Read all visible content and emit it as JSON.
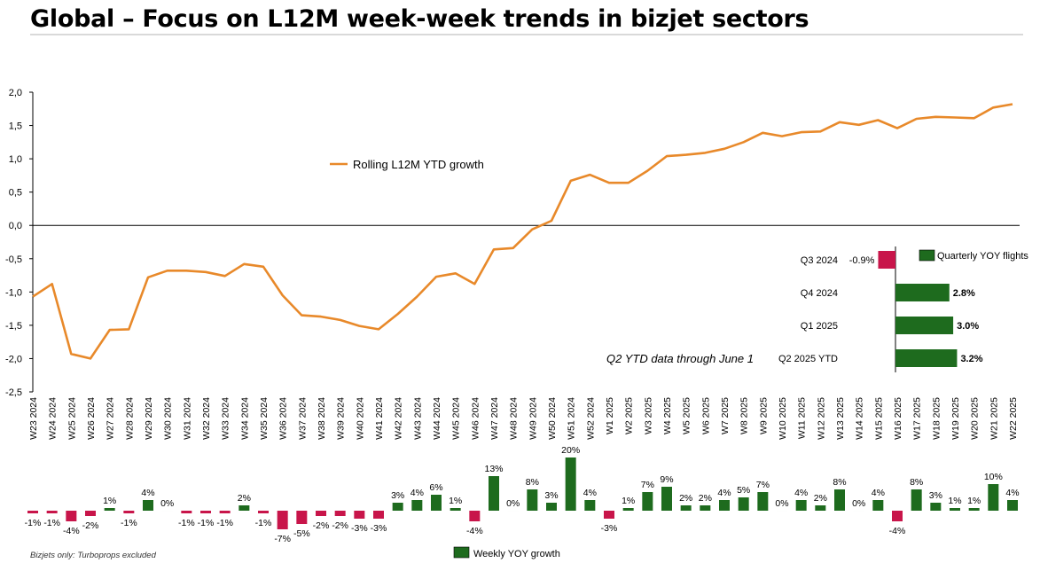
{
  "title": "Global – Focus on L12M week-week trends in bizjet sectors",
  "footnote": "Bizjets only: Turboprops excluded",
  "q2_note": "Q2 YTD data through June 1",
  "colors": {
    "line": "#e8892a",
    "positive": "#1e6b1e",
    "negative": "#c8154a"
  },
  "chart_data": [
    {
      "type": "line",
      "name": "rolling-ytd",
      "legend_label": "Rolling L12M YTD growth",
      "ylim": [
        -2.5,
        2.0
      ],
      "ytick_labels": [
        "2,0",
        "1,5",
        "1,0",
        "0,5",
        "0,0",
        "-0,5",
        "-1,0",
        "-1,5",
        "-2,0",
        "-2,5"
      ],
      "categories": [
        "W23 2024",
        "W24 2024",
        "W25 2024",
        "W26 2024",
        "W27 2024",
        "W28 2024",
        "W29 2024",
        "W30 2024",
        "W31 2024",
        "W32 2024",
        "W33 2024",
        "W34 2024",
        "W35 2024",
        "W36 2024",
        "W37 2024",
        "W38 2024",
        "W39 2024",
        "W40 2024",
        "W41 2024",
        "W42 2024",
        "W43 2024",
        "W44 2024",
        "W45 2024",
        "W46 2024",
        "W47 2024",
        "W48 2024",
        "W49 2024",
        "W50 2024",
        "W51 2024",
        "W52 2024",
        "W1 2025",
        "W2 2025",
        "W3 2025",
        "W4 2025",
        "W5 2025",
        "W6 2025",
        "W7 2025",
        "W8 2025",
        "W9 2025",
        "W10 2025",
        "W11 2025",
        "W12 2025",
        "W13 2025",
        "W14 2025",
        "W15 2025",
        "W16 2025",
        "W17 2025",
        "W18 2025",
        "W19 2025",
        "W20 2025",
        "W21 2025",
        "W22 2025"
      ],
      "values": [
        -1.07,
        -0.88,
        -1.93,
        -2.0,
        -1.57,
        -1.56,
        -0.78,
        -0.68,
        -0.68,
        -0.7,
        -0.76,
        -0.58,
        -0.62,
        -1.05,
        -1.35,
        -1.37,
        -1.42,
        -1.51,
        -1.56,
        -1.33,
        -1.07,
        -0.77,
        -0.72,
        -0.88,
        -0.36,
        -0.34,
        -0.06,
        0.07,
        0.67,
        0.76,
        0.64,
        0.64,
        0.82,
        1.04,
        1.06,
        1.09,
        1.15,
        1.25,
        1.39,
        1.34,
        1.4,
        1.41,
        1.55,
        1.51,
        1.58,
        1.46,
        1.6,
        1.63,
        1.62,
        1.61,
        1.77,
        1.82
      ]
    },
    {
      "type": "bar",
      "name": "weekly-yoy",
      "legend_label": "Weekly YOY growth",
      "values": [
        -1,
        -1,
        -4,
        -2,
        1,
        -1,
        4,
        0,
        -1,
        -1,
        -1,
        2,
        -1,
        -7,
        -5,
        -2,
        -2,
        -3,
        -3,
        3,
        4,
        6,
        1,
        -4,
        13,
        0,
        8,
        3,
        20,
        4,
        -3,
        1,
        7,
        9,
        2,
        2,
        4,
        5,
        7,
        0,
        4,
        2,
        8,
        0,
        4,
        -4,
        8,
        3,
        1,
        1,
        10,
        4
      ],
      "labels": [
        "-1%",
        "-1%",
        "-4%",
        "-2%",
        "1%",
        "-1%",
        "4%",
        "0%",
        "-1%",
        "-1%",
        "-1%",
        "2%",
        "-1%",
        "-7%",
        "-5%",
        "-2%",
        "-2%",
        "-3%",
        "-3%",
        "3%",
        "4%",
        "6%",
        "1%",
        "-4%",
        "13%",
        "0%",
        "8%",
        "3%",
        "20%",
        "4%",
        "-3%",
        "1%",
        "7%",
        "9%",
        "2%",
        "2%",
        "4%",
        "5%",
        "7%",
        "0%",
        "4%",
        "2%",
        "8%",
        "0%",
        "4%",
        "-4%",
        "8%",
        "3%",
        "1%",
        "1%",
        "10%",
        "4%"
      ]
    },
    {
      "type": "bar",
      "orientation": "horizontal",
      "name": "quarterly-yoy",
      "legend_label": "Quarterly YOY flights",
      "categories": [
        "Q3 2024",
        "Q4 2024",
        "Q1 2025",
        "Q2 2025 YTD"
      ],
      "values": [
        -0.9,
        2.8,
        3.0,
        3.2
      ],
      "labels": [
        "-0.9%",
        "2.8%",
        "3.0%",
        "3.2%"
      ]
    }
  ]
}
